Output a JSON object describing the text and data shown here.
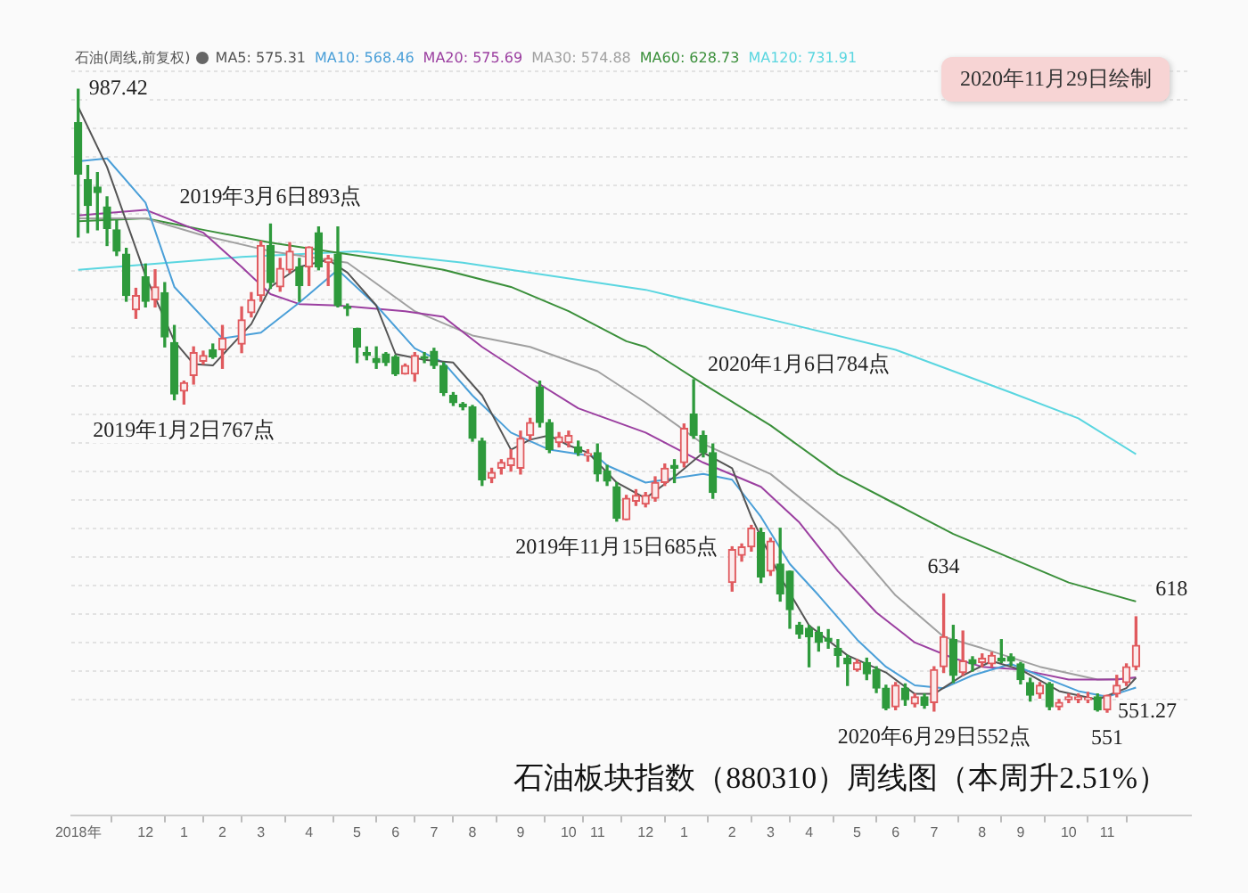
{
  "chart_data": {
    "type": "candlestick",
    "title": "石油板块指数（880310）周线图（本周升2.51%）",
    "subtitle": "石油(周线,前复权)",
    "x": [
      "2018-10-19",
      "2018-10-26",
      "2018-11-02",
      "2018-11-09",
      "2018-11-16",
      "2018-11-23",
      "2018-11-30",
      "2018-12-07",
      "2018-12-14",
      "2018-12-21",
      "2018-12-28",
      "2019-01-04",
      "2019-01-11",
      "2019-01-18",
      "2019-01-25",
      "2019-02-01",
      "2019-02-15",
      "2019-02-22",
      "2019-03-01",
      "2019-03-08",
      "2019-03-15",
      "2019-03-22",
      "2019-03-29",
      "2019-04-05",
      "2019-04-12",
      "2019-04-19",
      "2019-04-26",
      "2019-05-03",
      "2019-05-10",
      "2019-05-17",
      "2019-05-24",
      "2019-05-31",
      "2019-06-07",
      "2019-06-14",
      "2019-06-21",
      "2019-06-28",
      "2019-07-05",
      "2019-07-12",
      "2019-07-19",
      "2019-07-26",
      "2019-08-02",
      "2019-08-09",
      "2019-08-16",
      "2019-08-23",
      "2019-08-30",
      "2019-09-06",
      "2019-09-13",
      "2019-09-20",
      "2019-09-27",
      "2019-10-04",
      "2019-10-11",
      "2019-10-18",
      "2019-10-25",
      "2019-11-01",
      "2019-11-08",
      "2019-11-15",
      "2019-11-22",
      "2019-11-29",
      "2019-12-06",
      "2019-12-13",
      "2019-12-20",
      "2019-12-27",
      "2020-01-03",
      "2020-01-10",
      "2020-01-17",
      "2020-01-24",
      "2020-02-07",
      "2020-02-14",
      "2020-02-21",
      "2020-02-28",
      "2020-03-06",
      "2020-03-13",
      "2020-03-20",
      "2020-03-27",
      "2020-04-03",
      "2020-04-10",
      "2020-04-17",
      "2020-04-24",
      "2020-05-01",
      "2020-05-08",
      "2020-05-15",
      "2020-05-22",
      "2020-05-29",
      "2020-06-05",
      "2020-06-12",
      "2020-06-19",
      "2020-06-26",
      "2020-07-03",
      "2020-07-10",
      "2020-07-17",
      "2020-07-24",
      "2020-07-31",
      "2020-08-07",
      "2020-08-14",
      "2020-08-21",
      "2020-08-28",
      "2020-09-04",
      "2020-09-11",
      "2020-09-18",
      "2020-09-25",
      "2020-10-02",
      "2020-10-09",
      "2020-10-16",
      "2020-10-23",
      "2020-10-30",
      "2020-11-06",
      "2020-11-13",
      "2020-11-20",
      "2020-11-27"
    ],
    "ohlc": [
      [
        964,
        987.42,
        884,
        928
      ],
      [
        924,
        934,
        887,
        906
      ],
      [
        919,
        929,
        889,
        915
      ],
      [
        905,
        912,
        878,
        890
      ],
      [
        889,
        896,
        871,
        874
      ],
      [
        872,
        876,
        839,
        843
      ],
      [
        833,
        848,
        827,
        843
      ],
      [
        856,
        865,
        835,
        839
      ],
      [
        840,
        861,
        835,
        849
      ],
      [
        845,
        852,
        807,
        814
      ],
      [
        810,
        822,
        770,
        774
      ],
      [
        776,
        783,
        767,
        782
      ],
      [
        787,
        807,
        781,
        803
      ],
      [
        797,
        804,
        795,
        801
      ],
      [
        805,
        809,
        799,
        800
      ],
      [
        805,
        822,
        792,
        813
      ],
      [
        809,
        835,
        803,
        826
      ],
      [
        831,
        845,
        828,
        840
      ],
      [
        843,
        881,
        839,
        878
      ],
      [
        878,
        893,
        848,
        852
      ],
      [
        849,
        869,
        846,
        862
      ],
      [
        861,
        880,
        859,
        874
      ],
      [
        863,
        869,
        839,
        850
      ],
      [
        863,
        877,
        850,
        877
      ],
      [
        887,
        891,
        861,
        863
      ],
      [
        866,
        871,
        850,
        869
      ],
      [
        872,
        891,
        835,
        836
      ],
      [
        835,
        837,
        829,
        834
      ],
      [
        820,
        820,
        796,
        807
      ],
      [
        803,
        807,
        798,
        801
      ],
      [
        799,
        807,
        792,
        796
      ],
      [
        802,
        803,
        794,
        796
      ],
      [
        800,
        801,
        787,
        788
      ],
      [
        788,
        795,
        788,
        794
      ],
      [
        788,
        803,
        783,
        801
      ],
      [
        800,
        803,
        796,
        799
      ],
      [
        804,
        806,
        792,
        794
      ],
      [
        794,
        796,
        773,
        775
      ],
      [
        773,
        775,
        766,
        768
      ],
      [
        767,
        768,
        763,
        765
      ],
      [
        765,
        766,
        741,
        743
      ],
      [
        741,
        743,
        710,
        714
      ],
      [
        715,
        722,
        712,
        719
      ],
      [
        722,
        728,
        718,
        726
      ],
      [
        724,
        735,
        720,
        729
      ],
      [
        722,
        748,
        718,
        743
      ],
      [
        745,
        757,
        742,
        754
      ],
      [
        779,
        783,
        751,
        754
      ],
      [
        754,
        756,
        733,
        735
      ],
      [
        740,
        747,
        737,
        744
      ],
      [
        740,
        748,
        737,
        745
      ],
      [
        737,
        741,
        731,
        733
      ],
      [
        731,
        735,
        727,
        732
      ],
      [
        733,
        739,
        713,
        718
      ],
      [
        720,
        724,
        710,
        713
      ],
      [
        709,
        712,
        685,
        687
      ],
      [
        686,
        703,
        686,
        701
      ],
      [
        699,
        707,
        696,
        703
      ],
      [
        697,
        705,
        695,
        703
      ],
      [
        701,
        716,
        699,
        712
      ],
      [
        712,
        725,
        710,
        722
      ],
      [
        724,
        728,
        712,
        722
      ],
      [
        726,
        753,
        723,
        750
      ],
      [
        760,
        784,
        743,
        745
      ],
      [
        745,
        748,
        730,
        733
      ],
      [
        733,
        739,
        701,
        705
      ],
      [
        642,
        667,
        636,
        665
      ],
      [
        661,
        669,
        657,
        667
      ],
      [
        667,
        682,
        664,
        680
      ],
      [
        677,
        680,
        642,
        646
      ],
      [
        650,
        673,
        647,
        671
      ],
      [
        655,
        680,
        629,
        634
      ],
      [
        650,
        650,
        610,
        623
      ],
      [
        612,
        614,
        603,
        606
      ],
      [
        610,
        612,
        583,
        604
      ],
      [
        607,
        611,
        594,
        600
      ],
      [
        603,
        609,
        596,
        601
      ],
      [
        596,
        602,
        583,
        591
      ],
      [
        589,
        591,
        570,
        585
      ],
      [
        581,
        588,
        580,
        586
      ],
      [
        586,
        589,
        574,
        578
      ],
      [
        581,
        583,
        565,
        568
      ],
      [
        568,
        570,
        553,
        554
      ],
      [
        555,
        572,
        553,
        570
      ],
      [
        568,
        571,
        556,
        560
      ],
      [
        557,
        564,
        555,
        562
      ],
      [
        562,
        564,
        554,
        556
      ],
      [
        558,
        583,
        552,
        581
      ],
      [
        583,
        634,
        579,
        604
      ],
      [
        602,
        612,
        572,
        577
      ],
      [
        579,
        608,
        577,
        587
      ],
      [
        588,
        590,
        580,
        585
      ],
      [
        586,
        592,
        583,
        589
      ],
      [
        585,
        593,
        583,
        591
      ],
      [
        589,
        602,
        586,
        587
      ],
      [
        590,
        592,
        584,
        587
      ],
      [
        585,
        586,
        571,
        574
      ],
      [
        572,
        575,
        559,
        563
      ],
      [
        564,
        572,
        561,
        570
      ],
      [
        571,
        572,
        553,
        555
      ],
      [
        555,
        560,
        553,
        558
      ],
      [
        560,
        564,
        558,
        562
      ],
      [
        560,
        564,
        558,
        562
      ],
      [
        560,
        565,
        558,
        561
      ],
      [
        562,
        564,
        552,
        553
      ],
      [
        553,
        563,
        551.27,
        563
      ],
      [
        564,
        577,
        562,
        570
      ],
      [
        572,
        585,
        570,
        583
      ],
      [
        583,
        618,
        581,
        598
      ]
    ],
    "colors": [
      "#2e9a3c",
      "#2e9a3c",
      "#2e9a3c",
      "#2e9a3c",
      "#2e9a3c",
      "#2e9a3c",
      "#e05a5e",
      "#2e9a3c",
      "#e05a5e",
      "#2e9a3c",
      "#2e9a3c",
      "#e05a5e",
      "#e05a5e",
      "#e05a5e",
      "#2e9a3c",
      "#e05a5e",
      "#e05a5e",
      "#e05a5e",
      "#e05a5e",
      "#2e9a3c",
      "#e05a5e",
      "#e05a5e",
      "#2e9a3c",
      "#e05a5e",
      "#2e9a3c",
      "#e05a5e",
      "#2e9a3c",
      "#2e9a3c",
      "#2e9a3c",
      "#2e9a3c",
      "#2e9a3c",
      "#2e9a3c",
      "#2e9a3c",
      "#e05a5e",
      "#e05a5e",
      "#2e9a3c",
      "#2e9a3c",
      "#2e9a3c",
      "#2e9a3c",
      "#2e9a3c",
      "#2e9a3c",
      "#2e9a3c",
      "#e05a5e",
      "#e05a5e",
      "#e05a5e",
      "#e05a5e",
      "#e05a5e",
      "#2e9a3c",
      "#2e9a3c",
      "#e05a5e",
      "#e05a5e",
      "#2e9a3c",
      "#e05a5e",
      "#2e9a3c",
      "#2e9a3c",
      "#2e9a3c",
      "#e05a5e",
      "#e05a5e",
      "#e05a5e",
      "#e05a5e",
      "#e05a5e",
      "#2e9a3c",
      "#e05a5e",
      "#2e9a3c",
      "#2e9a3c",
      "#2e9a3c",
      "#e05a5e",
      "#e05a5e",
      "#e05a5e",
      "#2e9a3c",
      "#e05a5e",
      "#2e9a3c",
      "#2e9a3c",
      "#2e9a3c",
      "#2e9a3c",
      "#2e9a3c",
      "#2e9a3c",
      "#2e9a3c",
      "#2e9a3c",
      "#e05a5e",
      "#2e9a3c",
      "#2e9a3c",
      "#2e9a3c",
      "#e05a5e",
      "#2e9a3c",
      "#e05a5e",
      "#2e9a3c",
      "#e05a5e",
      "#e05a5e",
      "#2e9a3c",
      "#e05a5e",
      "#2e9a3c",
      "#e05a5e",
      "#e05a5e",
      "#2e9a3c",
      "#2e9a3c",
      "#2e9a3c",
      "#2e9a3c",
      "#e05a5e",
      "#2e9a3c",
      "#e05a5e",
      "#e05a5e",
      "#e05a5e",
      "#e05a5e",
      "#2e9a3c",
      "#e05a5e",
      "#e05a5e",
      "#e05a5e",
      "#e05a5e"
    ],
    "series": [
      {
        "name": "MA5: 575.31",
        "type": "line",
        "color": "#555555",
        "x": [
          "2018-10-19",
          "2018-11-09",
          "2018-12-07",
          "2018-12-28",
          "2019-01-11",
          "2019-01-25",
          "2019-02-22",
          "2019-03-08",
          "2019-03-29",
          "2019-04-19",
          "2019-05-03",
          "2019-05-24",
          "2019-06-07",
          "2019-06-28",
          "2019-07-19",
          "2019-08-09",
          "2019-08-30",
          "2019-09-13",
          "2019-09-27",
          "2019-10-11",
          "2019-10-25",
          "2019-11-15",
          "2019-12-06",
          "2019-12-27",
          "2020-01-17",
          "2020-02-07",
          "2020-02-21",
          "2020-03-13",
          "2020-04-03",
          "2020-05-01",
          "2020-05-29",
          "2020-06-19",
          "2020-07-03",
          "2020-07-24",
          "2020-08-14",
          "2020-09-04",
          "2020-10-02",
          "2020-10-30",
          "2020-11-20",
          "2020-11-27"
        ],
        "values": [
          975,
          933,
          857,
          811,
          795,
          794,
          823,
          849,
          863,
          868,
          859,
          836,
          802,
          798,
          796,
          773,
          735,
          742,
          745,
          738,
          733,
          712,
          701,
          716,
          733,
          722,
          688,
          646,
          612,
          591,
          579,
          564,
          564,
          577,
          587,
          581,
          566,
          560,
          568,
          575.31
        ]
      },
      {
        "name": "MA10: 568.46",
        "type": "line",
        "color": "#4a9fd8",
        "x": [
          "2018-10-19",
          "2018-11-09",
          "2018-12-07",
          "2018-12-28",
          "2019-02-01",
          "2019-03-01",
          "2019-03-29",
          "2019-04-26",
          "2019-05-24",
          "2019-06-21",
          "2019-07-12",
          "2019-08-02",
          "2019-08-30",
          "2019-09-27",
          "2019-11-01",
          "2019-11-08",
          "2019-12-06",
          "2020-01-17",
          "2020-02-07",
          "2020-02-28",
          "2020-03-20",
          "2020-04-10",
          "2020-05-08",
          "2020-05-29",
          "2020-06-19",
          "2020-07-10",
          "2020-07-31",
          "2020-08-28",
          "2020-09-25",
          "2020-10-16",
          "2020-11-06",
          "2020-11-27"
        ],
        "values": [
          937,
          939,
          908,
          849,
          813,
          817,
          838,
          861,
          836,
          806,
          796,
          773,
          747,
          735,
          730,
          724,
          712,
          718,
          714,
          688,
          655,
          633,
          602,
          583,
          570,
          568,
          577,
          585,
          574,
          566,
          562,
          568.46
        ]
      },
      {
        "name": "MA20: 575.69",
        "type": "line",
        "color": "#9b3fa0",
        "x": [
          "2018-10-19",
          "2018-12-07",
          "2019-01-18",
          "2019-02-15",
          "2019-03-08",
          "2019-03-29",
          "2019-04-26",
          "2019-06-14",
          "2019-07-12",
          "2019-08-09",
          "2019-09-13",
          "2019-10-18",
          "2019-12-06",
          "2020-01-17",
          "2020-02-28",
          "2020-03-27",
          "2020-04-24",
          "2020-05-22",
          "2020-06-19",
          "2020-07-17",
          "2020-08-07",
          "2020-09-04",
          "2020-10-09",
          "2020-11-13",
          "2020-11-27"
        ],
        "values": [
          899,
          903,
          887,
          863,
          844,
          837,
          836,
          832,
          828,
          807,
          785,
          764,
          747,
          726,
          709,
          684,
          650,
          621,
          600,
          589,
          583,
          581,
          574,
          574,
          575.69
        ]
      },
      {
        "name": "MA30: 574.88",
        "type": "line",
        "color": "#a0a0a0",
        "x": [
          "2018-10-19",
          "2018-12-07",
          "2019-01-18",
          "2019-03-08",
          "2019-05-03",
          "2019-06-21",
          "2019-08-02",
          "2019-09-13",
          "2019-11-01",
          "2019-12-06",
          "2020-01-17",
          "2020-03-06",
          "2020-04-24",
          "2020-06-05",
          "2020-07-10",
          "2020-08-07",
          "2020-09-18",
          "2020-10-30",
          "2020-11-27"
        ],
        "values": [
          897,
          897,
          885,
          874,
          866,
          832,
          815,
          807,
          790,
          768,
          739,
          718,
          680,
          633,
          604,
          596,
          583,
          574,
          574.88
        ]
      },
      {
        "name": "MA60: 628.73",
        "type": "line",
        "color": "#3a8f3a",
        "x": [
          "2018-10-19",
          "2018-12-07",
          "2019-01-18",
          "2019-03-08",
          "2019-04-19",
          "2019-05-31",
          "2019-07-12",
          "2019-08-30",
          "2019-10-11",
          "2019-11-22",
          "2019-12-06",
          "2020-01-17",
          "2020-03-06",
          "2020-04-24",
          "2020-06-05",
          "2020-07-17",
          "2020-08-28",
          "2020-10-09",
          "2020-11-27"
        ],
        "values": [
          895,
          897,
          889,
          880,
          874,
          868,
          861,
          849,
          832,
          811,
          807,
          781,
          752,
          718,
          697,
          676,
          659,
          642,
          628.73
        ]
      },
      {
        "name": "MA120: 731.91",
        "type": "line",
        "color": "#5ad6e0",
        "x": [
          "2018-10-19",
          "2019-02-15",
          "2019-05-10",
          "2019-07-26",
          "2019-12-06",
          "2020-03-20",
          "2020-06-05",
          "2020-08-28",
          "2020-10-16",
          "2020-11-27"
        ],
        "values": [
          861,
          870,
          874,
          866,
          847,
          823,
          805,
          775,
          757,
          731.91
        ]
      }
    ],
    "xlim": [
      "2018-10-14",
      "2021-01-06"
    ],
    "xticks": [
      {
        "value": "2018-10-19",
        "label": "2018年"
      },
      {
        "value": "2018-12-07",
        "label": "12"
      },
      {
        "value": "2019-01-04",
        "label": "1"
      },
      {
        "value": "2019-02-01",
        "label": "2"
      },
      {
        "value": "2019-03-01",
        "label": "3"
      },
      {
        "value": "2019-04-05",
        "label": "4"
      },
      {
        "value": "2019-05-10",
        "label": "5"
      },
      {
        "value": "2019-06-07",
        "label": "6"
      },
      {
        "value": "2019-07-05",
        "label": "7"
      },
      {
        "value": "2019-08-02",
        "label": "8"
      },
      {
        "value": "2019-09-06",
        "label": "9"
      },
      {
        "value": "2019-10-11",
        "label": "10"
      },
      {
        "value": "2019-11-01",
        "label": "11"
      },
      {
        "value": "2019-12-06",
        "label": "12"
      },
      {
        "value": "2020-01-03",
        "label": "1"
      },
      {
        "value": "2020-02-07",
        "label": "2"
      },
      {
        "value": "2020-03-06",
        "label": "3"
      },
      {
        "value": "2020-04-03",
        "label": "4"
      },
      {
        "value": "2020-05-08",
        "label": "5"
      },
      {
        "value": "2020-06-05",
        "label": "6"
      },
      {
        "value": "2020-07-03",
        "label": "7"
      },
      {
        "value": "2020-08-07",
        "label": "8"
      },
      {
        "value": "2020-09-04",
        "label": "9"
      },
      {
        "value": "2020-10-09",
        "label": "10"
      },
      {
        "value": "2020-11-06",
        "label": "11"
      }
    ],
    "ylim": [
      479,
      1000
    ],
    "yticks": [
      {
        "value": 560,
        "label": null
      },
      {
        "value": 580,
        "label": null
      },
      {
        "value": 600,
        "label": null
      },
      {
        "value": 620,
        "label": null
      },
      {
        "value": 640,
        "label": null
      },
      {
        "value": 660,
        "label": null
      },
      {
        "value": 680,
        "label": null
      },
      {
        "value": 700,
        "label": null
      },
      {
        "value": 720,
        "label": null
      },
      {
        "value": 740,
        "label": null
      },
      {
        "value": 760,
        "label": null
      },
      {
        "value": 780,
        "label": null
      },
      {
        "value": 800,
        "label": null
      },
      {
        "value": 820,
        "label": null
      },
      {
        "value": 840,
        "label": null
      },
      {
        "value": 860,
        "label": null
      },
      {
        "value": 880,
        "label": null
      },
      {
        "value": 900,
        "label": null
      },
      {
        "value": 920,
        "label": null
      },
      {
        "value": 940,
        "label": null
      },
      {
        "value": 960,
        "label": null
      },
      {
        "value": 980,
        "label": null
      },
      {
        "value": 1000,
        "label": null
      }
    ],
    "tick_labels": "x",
    "grid": "y",
    "legend": "top left",
    "annotations": [
      "2020年11月29日绘制",
      {
        "text": "987.42",
        "x": "2018-10-19",
        "y": 987.42
      },
      {
        "text": "2019年1月2日767点",
        "x": "2019-01-04",
        "y": 767
      },
      {
        "text": "2019年3月6日893点",
        "x": "2019-03-08",
        "y": 893
      },
      {
        "text": "2019年11月15日685点",
        "x": "2019-11-15",
        "y": 685
      },
      {
        "text": "2020年1月6日784点",
        "x": "2020-01-10",
        "y": 784
      },
      {
        "text": "2020年6月29日552点",
        "x": "2020-07-03",
        "y": 552
      },
      {
        "text": "634",
        "x": "2020-07-10",
        "y": 634
      },
      {
        "text": "551",
        "x": "2020-11-06",
        "y": 551.27
      },
      {
        "text": "551.27",
        "x": "2020-11-06",
        "y": 551.27
      },
      {
        "text": "618",
        "x": "2020-11-27",
        "y": 618
      }
    ]
  }
}
